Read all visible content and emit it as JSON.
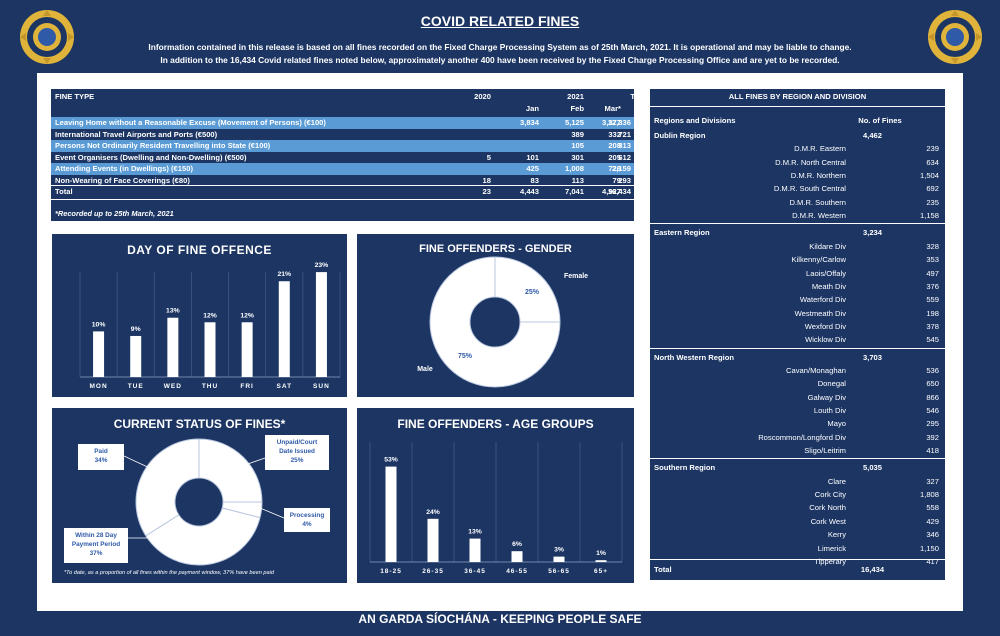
{
  "header": {
    "title": "COVID RELATED FINES",
    "info_line1": "Information contained in this release is based on all fines recorded on the Fixed Charge Processing System as of 25th March, 2021.  It is operational and may be liable to change.",
    "info_line2": "In addition to the 16,434 Covid related fines noted below, approximately another 400 have been received by the Fixed Charge Processing Office and are yet to be recorded."
  },
  "footer": {
    "text": "AN GARDA SÍOCHÁNA - KEEPING PEOPLE SAFE"
  },
  "colors": {
    "navy": "#1c3563",
    "accent": "#5b9bd5",
    "white": "#ffffff",
    "gold": "#e0b43a"
  },
  "fines_table": {
    "col_fine_type": "FINE TYPE",
    "col_2020": "2020",
    "col_2021": "2021",
    "col_jan": "Jan",
    "col_feb": "Feb",
    "col_mar": "Mar*",
    "col_total": "Total",
    "rows": [
      {
        "label": "Leaving Home without a Reasonable Excuse (Movement of Persons) (€100)",
        "y2020": "",
        "jan": "3,834",
        "feb": "5,125",
        "mar": "3,377",
        "total": "12,336"
      },
      {
        "label": "International Travel Airports and Ports (€500)",
        "y2020": "",
        "jan": "",
        "feb": "389",
        "mar": "332",
        "total": "721"
      },
      {
        "label": "Persons Not Ordinarily Resident Travelling into State (€100)",
        "y2020": "",
        "jan": "",
        "feb": "105",
        "mar": "208",
        "total": "313"
      },
      {
        "label": "Event Organisers (Dwelling and Non-Dwelling) (€500)",
        "y2020": "5",
        "jan": "101",
        "feb": "301",
        "mar": "205",
        "total": "612"
      },
      {
        "label": "Attending Events (in Dwellings) (€150)",
        "y2020": "",
        "jan": "425",
        "feb": "1,008",
        "mar": "726",
        "total": "2,159"
      },
      {
        "label": "Non-Wearing of Face Coverings (€80)",
        "y2020": "18",
        "jan": "83",
        "feb": "113",
        "mar": "79",
        "total": "293"
      }
    ],
    "total_row": {
      "label": "Total",
      "y2020": "23",
      "jan": "4,443",
      "feb": "7,041",
      "mar": "4,927",
      "total": "16,434"
    },
    "note": "*Recorded up to 25th March, 2021"
  },
  "chart_data": [
    {
      "type": "bar",
      "title": "DAY OF FINE OFFENCE",
      "categories": [
        "MON",
        "TUE",
        "WED",
        "THU",
        "FRI",
        "SAT",
        "SUN"
      ],
      "values": [
        10,
        9,
        13,
        12,
        12,
        21,
        23
      ],
      "labels": [
        "10%",
        "9%",
        "13%",
        "12%",
        "12%",
        "21%",
        "23%"
      ],
      "ylim": [
        0,
        25
      ]
    },
    {
      "type": "pie",
      "title": "FINE OFFENDERS - GENDER",
      "categories": [
        "Female",
        "Male"
      ],
      "values": [
        25,
        75
      ],
      "labels": [
        "25%",
        "75%"
      ]
    },
    {
      "type": "pie",
      "title": "CURRENT STATUS OF FINES*",
      "categories": [
        "Unpaid/Court Date Issued",
        "Processing",
        "Within 28 Day Payment Period",
        "Paid"
      ],
      "values": [
        25,
        4,
        37,
        34
      ],
      "labels": [
        "25%",
        "4%",
        "37%",
        "34%"
      ],
      "note": "*To date, as a proportion of all fines within the payment window, 37% have been paid"
    },
    {
      "type": "bar",
      "title": "FINE OFFENDERS - AGE GROUPS",
      "categories": [
        "18-25",
        "26-35",
        "36-45",
        "46-55",
        "56-65",
        "65+"
      ],
      "values": [
        53,
        24,
        13,
        6,
        3,
        1
      ],
      "labels": [
        "53%",
        "24%",
        "13%",
        "6%",
        "3%",
        "1%"
      ],
      "ylim": [
        0,
        60
      ]
    }
  ],
  "region_table": {
    "title": "ALL FINES BY REGION AND DIVISION",
    "col_regions": "Regions and Divisions",
    "col_fines": "No. of Fines",
    "regions": [
      {
        "name": "Dublin Region",
        "total": "4,462",
        "divisions": [
          {
            "name": "D.M.R. Eastern",
            "value": "239"
          },
          {
            "name": "D.M.R. North Central",
            "value": "634"
          },
          {
            "name": "D.M.R. Northern",
            "value": "1,504"
          },
          {
            "name": "D.M.R. South Central",
            "value": "692"
          },
          {
            "name": "D.M.R. Southern",
            "value": "235"
          },
          {
            "name": "D.M.R. Western",
            "value": "1,158"
          }
        ]
      },
      {
        "name": "Eastern Region",
        "total": "3,234",
        "divisions": [
          {
            "name": "Kildare Div",
            "value": "328"
          },
          {
            "name": "Kilkenny/Carlow",
            "value": "353"
          },
          {
            "name": "Laois/Offaly",
            "value": "497"
          },
          {
            "name": "Meath Div",
            "value": "376"
          },
          {
            "name": "Waterford Div",
            "value": "559"
          },
          {
            "name": "Westmeath Div",
            "value": "198"
          },
          {
            "name": "Wexford Div",
            "value": "378"
          },
          {
            "name": "Wicklow Div",
            "value": "545"
          }
        ]
      },
      {
        "name": "North Western Region",
        "total": "3,703",
        "divisions": [
          {
            "name": "Cavan/Monaghan",
            "value": "536"
          },
          {
            "name": "Donegal",
            "value": "650"
          },
          {
            "name": "Galway Div",
            "value": "866"
          },
          {
            "name": "Louth Div",
            "value": "546"
          },
          {
            "name": "Mayo",
            "value": "295"
          },
          {
            "name": "Roscommon/Longford Div",
            "value": "392"
          },
          {
            "name": "Sligo/Leitrim",
            "value": "418"
          }
        ]
      },
      {
        "name": "Southern Region",
        "total": "5,035",
        "divisions": [
          {
            "name": "Clare",
            "value": "327"
          },
          {
            "name": "Cork City",
            "value": "1,808"
          },
          {
            "name": "Cork North",
            "value": "558"
          },
          {
            "name": "Cork West",
            "value": "429"
          },
          {
            "name": "Kerry",
            "value": "346"
          },
          {
            "name": "Limerick",
            "value": "1,150"
          },
          {
            "name": "Tipperary",
            "value": "417"
          }
        ]
      }
    ],
    "total_label": "Total",
    "total_value": "16,434"
  }
}
